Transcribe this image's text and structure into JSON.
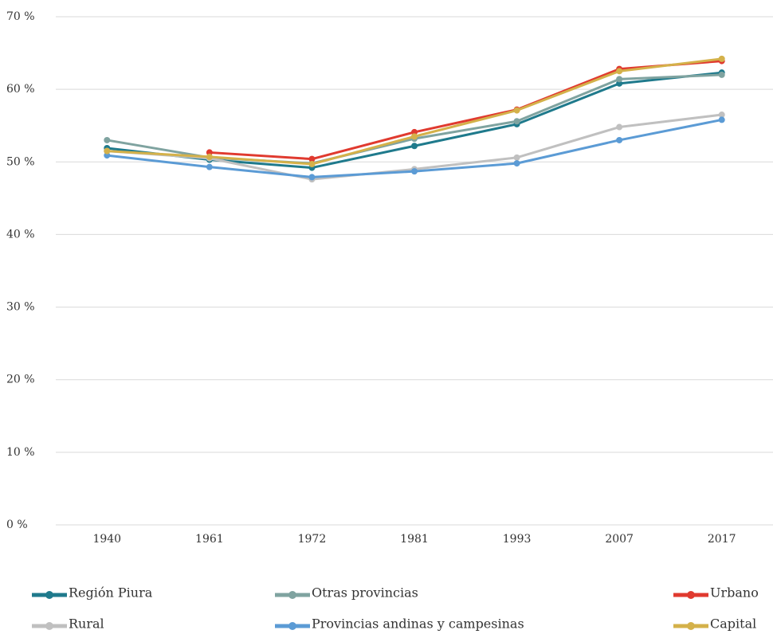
{
  "chart_data": {
    "type": "line",
    "categories": [
      "1940",
      "1961",
      "1972",
      "1981",
      "1993",
      "2007",
      "2017"
    ],
    "series": [
      {
        "name": "Región Piura",
        "color": "#1f7a8c",
        "values": [
          51.9,
          50.3,
          49.2,
          52.2,
          55.2,
          60.8,
          62.3
        ]
      },
      {
        "name": "Otras provincias",
        "color": "#7fa3a0",
        "values": [
          53.0,
          50.6,
          49.8,
          53.2,
          55.6,
          61.4,
          62.0
        ]
      },
      {
        "name": "Urbano",
        "color": "#e03a2f",
        "values": [
          null,
          51.3,
          50.4,
          54.1,
          57.2,
          62.8,
          63.9
        ]
      },
      {
        "name": "Rural",
        "color": "#c0c0c0",
        "values": [
          51.5,
          50.5,
          47.6,
          49.0,
          50.6,
          54.8,
          56.5
        ]
      },
      {
        "name": "Provincias andinas y campesinas",
        "color": "#5b9bd5",
        "values": [
          50.9,
          49.3,
          47.9,
          48.7,
          49.8,
          53.0,
          55.8
        ]
      },
      {
        "name": "Capital",
        "color": "#d4b14a",
        "values": [
          51.5,
          50.7,
          49.7,
          53.5,
          57.1,
          62.5,
          64.2
        ]
      }
    ],
    "ylim": [
      0,
      70
    ],
    "yticks": [
      {
        "value": 0,
        "label": "0 %"
      },
      {
        "value": 10,
        "label": "10 %"
      },
      {
        "value": 20,
        "label": "20 %"
      },
      {
        "value": 30,
        "label": "30 %"
      },
      {
        "value": 40,
        "label": "40 %"
      },
      {
        "value": 50,
        "label": "50 %"
      },
      {
        "value": 60,
        "label": "60 %"
      },
      {
        "value": 70,
        "label": "70 %"
      }
    ],
    "grid": true,
    "legend": "bottom"
  }
}
